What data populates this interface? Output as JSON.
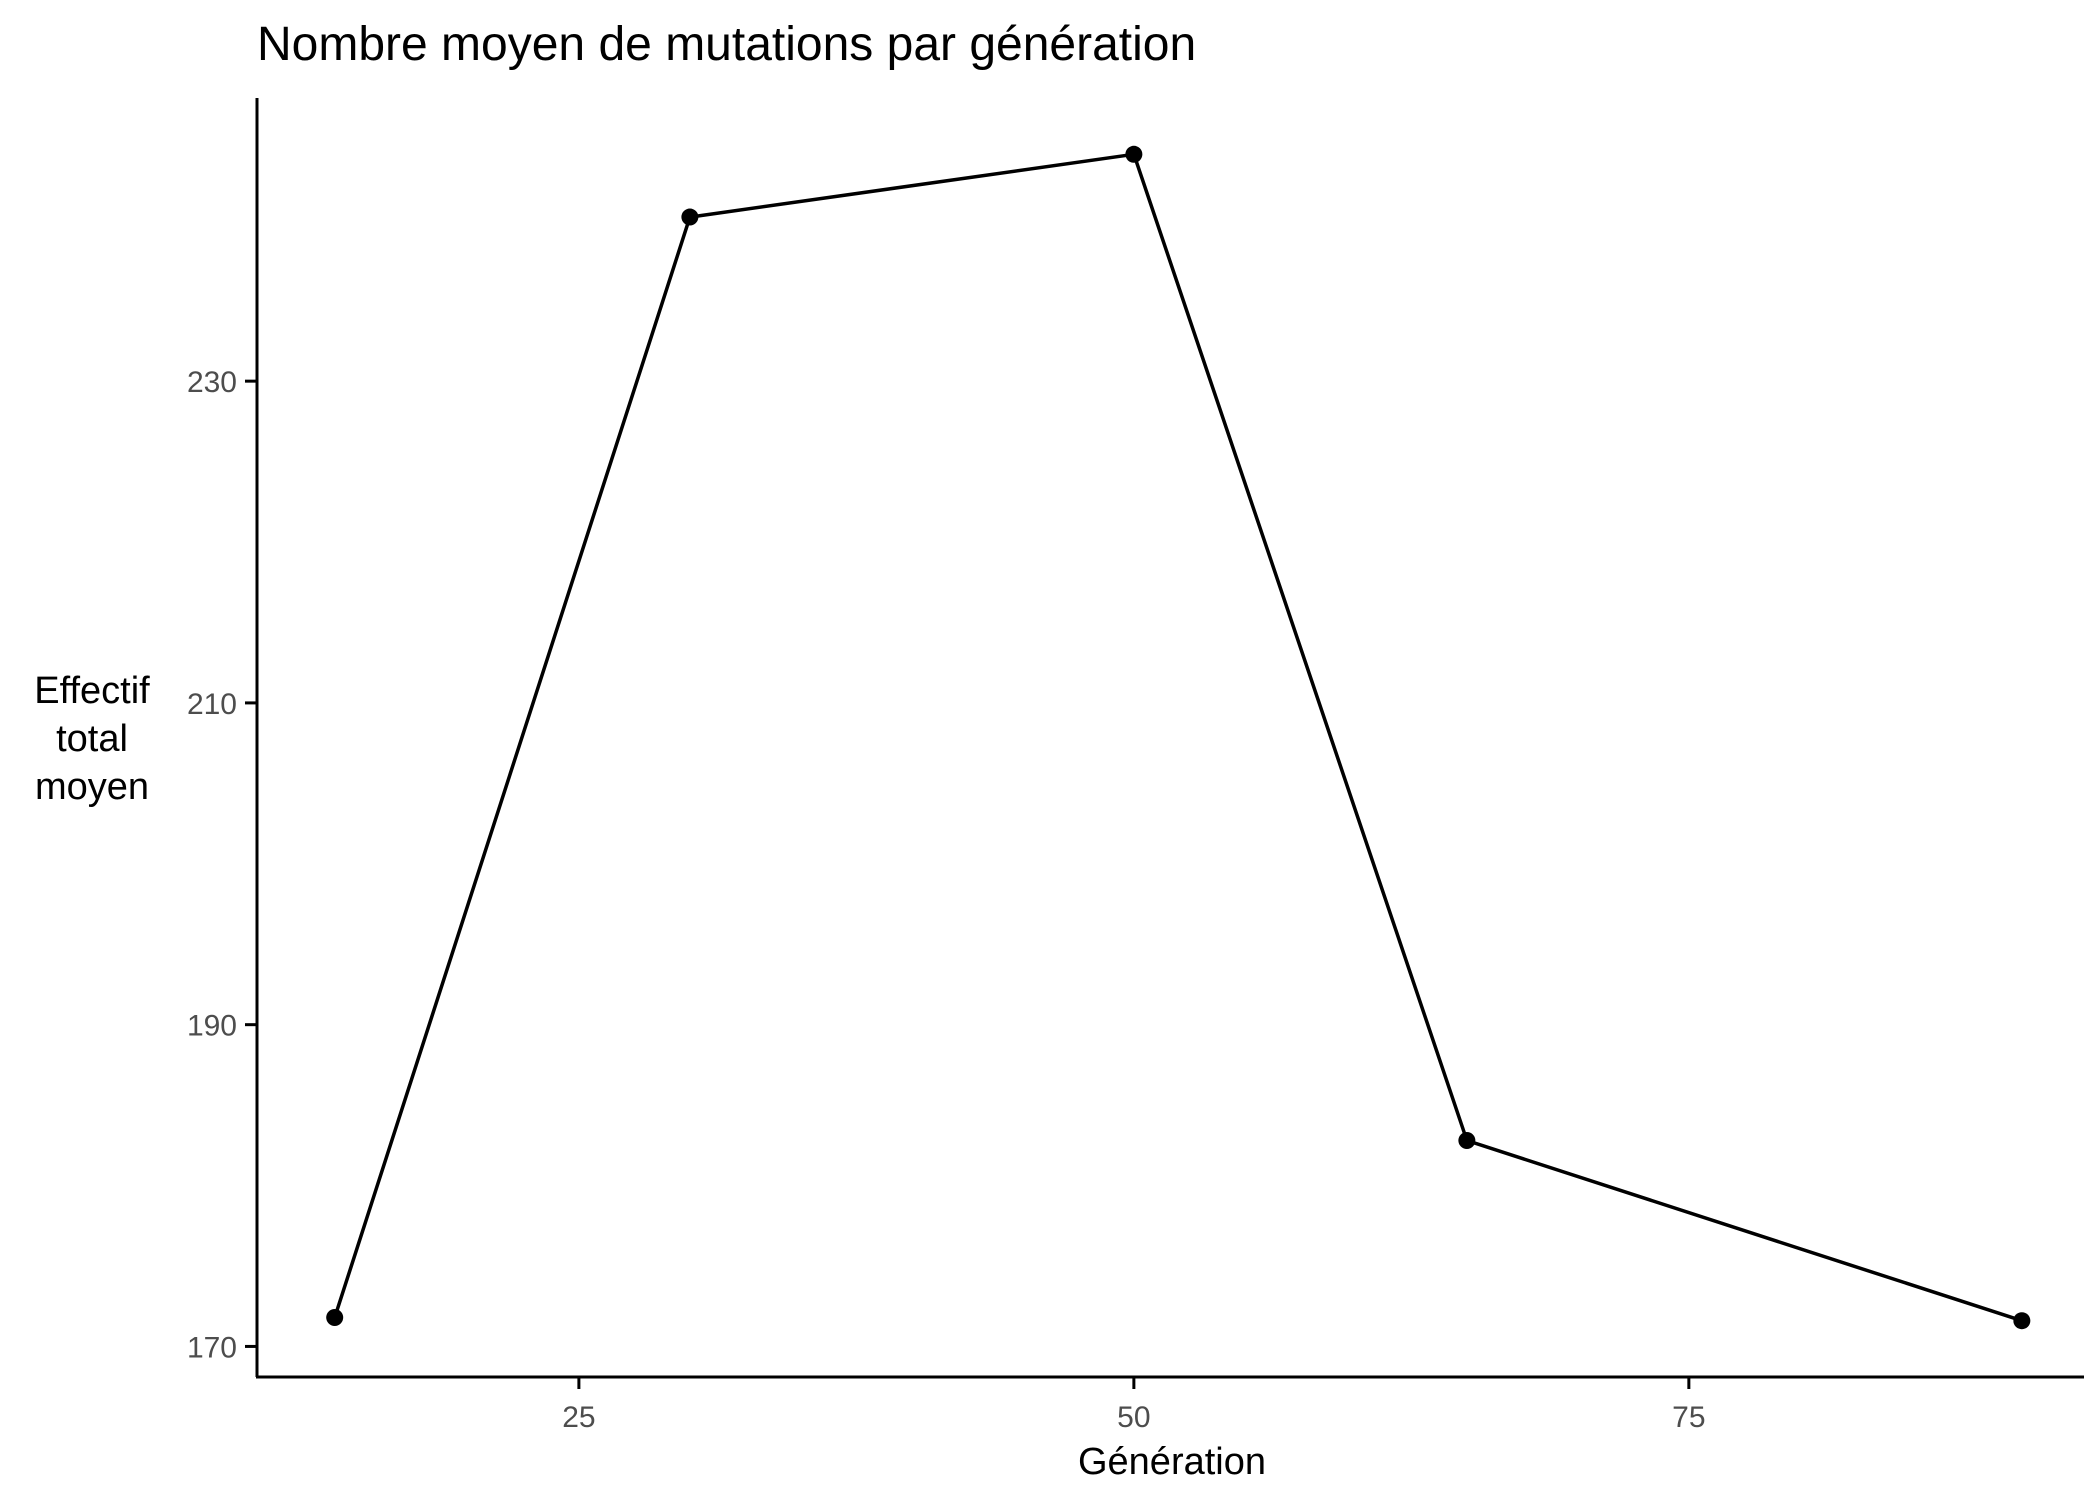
{
  "chart_data": {
    "type": "line",
    "title": "Nombre moyen de mutations par génération",
    "xlabel": "Génération",
    "ylabel": [
      "Effectif",
      "total",
      "moyen"
    ],
    "x": [
      14,
      30,
      50,
      65,
      90
    ],
    "series": [
      {
        "values": [
          171.8,
          240.2,
          244.1,
          182.8,
          171.6
        ]
      }
    ],
    "xticks": [
      25,
      50,
      75
    ],
    "yticks": [
      170,
      190,
      210,
      230
    ],
    "xlim": [
      10.5,
      92.8
    ],
    "ylim": [
      168.1,
      247.6
    ],
    "grid": false,
    "legend": "none",
    "colors": {
      "line": "#000000",
      "axis": "#000000",
      "tick_text": "#4d4d4d"
    }
  }
}
